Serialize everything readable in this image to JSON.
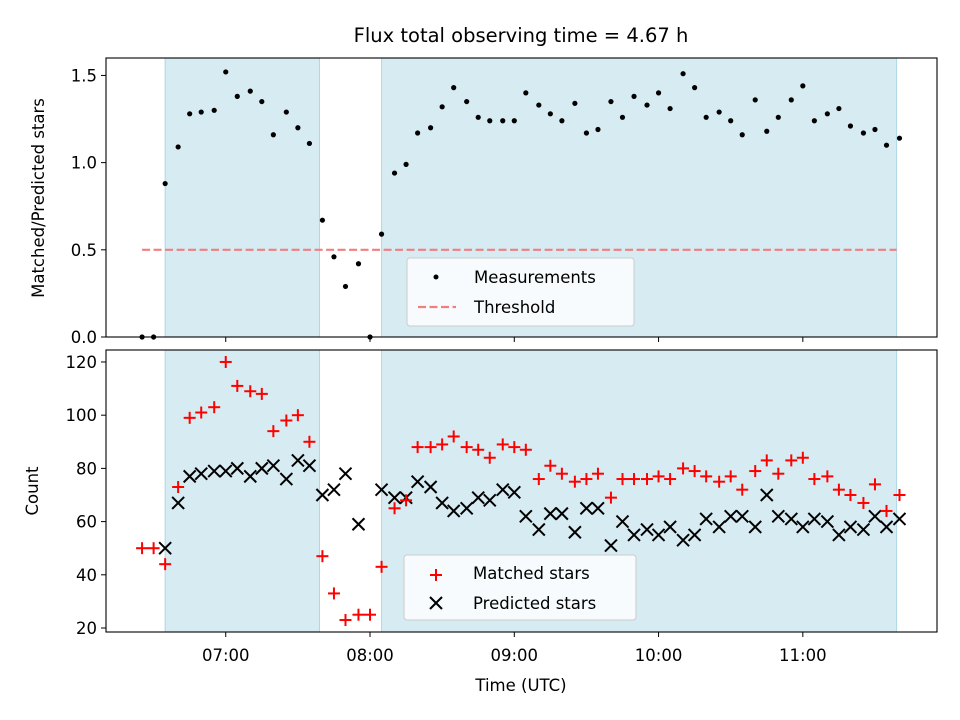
{
  "title": "Flux total observing time = 4.67 h",
  "colors": {
    "span": "#add8e6",
    "threshold": "#f08080",
    "matched": "#ff0000",
    "predicted": "#000000",
    "measure": "#000000"
  },
  "chart_data": [
    {
      "type": "scatter",
      "ylabel": "Matched/Predicted stars",
      "ylim": [
        0,
        1.6
      ],
      "xlim": [
        6.17,
        11.93
      ],
      "yticks": [
        {
          "v": 0,
          "label": "0.0"
        },
        {
          "v": 0.5,
          "label": "0.5"
        },
        {
          "v": 1.0,
          "label": "1.0"
        },
        {
          "v": 1.5,
          "label": "1.5"
        }
      ],
      "spans": [
        [
          6.58,
          7.65
        ],
        [
          8.08,
          11.65
        ]
      ],
      "threshold": {
        "y": 0.5,
        "x": [
          6.42,
          11.65
        ],
        "name": "Threshold"
      },
      "legend": {
        "position": "lower-center",
        "entries": [
          "Measurements",
          "Threshold"
        ]
      },
      "series": [
        {
          "name": "Measurements",
          "points": [
            [
              6.42,
              0.0
            ],
            [
              6.5,
              0.0
            ],
            [
              6.58,
              0.88
            ],
            [
              6.67,
              1.09
            ],
            [
              6.75,
              1.28
            ],
            [
              6.83,
              1.29
            ],
            [
              6.92,
              1.3
            ],
            [
              7.0,
              1.52
            ],
            [
              7.08,
              1.38
            ],
            [
              7.17,
              1.41
            ],
            [
              7.25,
              1.35
            ],
            [
              7.33,
              1.16
            ],
            [
              7.42,
              1.29
            ],
            [
              7.5,
              1.2
            ],
            [
              7.58,
              1.11
            ],
            [
              7.67,
              0.67
            ],
            [
              7.75,
              0.46
            ],
            [
              7.83,
              0.29
            ],
            [
              7.92,
              0.42
            ],
            [
              8.0,
              0.0
            ],
            [
              8.08,
              0.59
            ],
            [
              8.17,
              0.94
            ],
            [
              8.25,
              0.99
            ],
            [
              8.33,
              1.17
            ],
            [
              8.42,
              1.2
            ],
            [
              8.5,
              1.32
            ],
            [
              8.58,
              1.43
            ],
            [
              8.67,
              1.35
            ],
            [
              8.75,
              1.26
            ],
            [
              8.83,
              1.24
            ],
            [
              8.92,
              1.24
            ],
            [
              9.0,
              1.24
            ],
            [
              9.08,
              1.4
            ],
            [
              9.17,
              1.33
            ],
            [
              9.25,
              1.28
            ],
            [
              9.33,
              1.24
            ],
            [
              9.42,
              1.34
            ],
            [
              9.5,
              1.17
            ],
            [
              9.58,
              1.19
            ],
            [
              9.67,
              1.35
            ],
            [
              9.75,
              1.26
            ],
            [
              9.83,
              1.38
            ],
            [
              9.92,
              1.33
            ],
            [
              10.0,
              1.4
            ],
            [
              10.08,
              1.31
            ],
            [
              10.17,
              1.51
            ],
            [
              10.25,
              1.43
            ],
            [
              10.33,
              1.26
            ],
            [
              10.42,
              1.29
            ],
            [
              10.5,
              1.24
            ],
            [
              10.58,
              1.16
            ],
            [
              10.67,
              1.36
            ],
            [
              10.75,
              1.18
            ],
            [
              10.83,
              1.26
            ],
            [
              10.92,
              1.36
            ],
            [
              11.0,
              1.44
            ],
            [
              11.08,
              1.24
            ],
            [
              11.17,
              1.28
            ],
            [
              11.25,
              1.31
            ],
            [
              11.33,
              1.21
            ],
            [
              11.42,
              1.17
            ],
            [
              11.5,
              1.19
            ],
            [
              11.58,
              1.1
            ],
            [
              11.67,
              1.14
            ]
          ]
        }
      ]
    },
    {
      "type": "scatter",
      "xlabel": "Time (UTC)",
      "ylabel": "Count",
      "ylim": [
        18.5,
        124.5
      ],
      "xlim": [
        6.17,
        11.93
      ],
      "yticks": [
        {
          "v": 20,
          "label": "20"
        },
        {
          "v": 40,
          "label": "40"
        },
        {
          "v": 60,
          "label": "60"
        },
        {
          "v": 80,
          "label": "80"
        },
        {
          "v": 100,
          "label": "100"
        },
        {
          "v": 120,
          "label": "120"
        }
      ],
      "xticks": [
        {
          "v": 7,
          "label": "07:00"
        },
        {
          "v": 8,
          "label": "08:00"
        },
        {
          "v": 9,
          "label": "09:00"
        },
        {
          "v": 10,
          "label": "10:00"
        },
        {
          "v": 11,
          "label": "11:00"
        }
      ],
      "spans": [
        [
          6.58,
          7.65
        ],
        [
          8.08,
          11.65
        ]
      ],
      "legend": {
        "position": "lower-center",
        "entries": [
          "Matched stars",
          "Predicted stars"
        ]
      },
      "series": [
        {
          "name": "Matched stars",
          "marker": "plus",
          "points": [
            [
              6.42,
              50
            ],
            [
              6.5,
              50
            ],
            [
              6.58,
              44
            ],
            [
              6.67,
              73
            ],
            [
              6.75,
              99
            ],
            [
              6.83,
              101
            ],
            [
              6.92,
              103
            ],
            [
              7.0,
              120
            ],
            [
              7.08,
              111
            ],
            [
              7.17,
              109
            ],
            [
              7.25,
              108
            ],
            [
              7.33,
              94
            ],
            [
              7.42,
              98
            ],
            [
              7.5,
              100
            ],
            [
              7.58,
              90
            ],
            [
              7.67,
              47
            ],
            [
              7.75,
              33
            ],
            [
              7.83,
              23
            ],
            [
              7.92,
              25
            ],
            [
              8.0,
              25
            ],
            [
              8.08,
              43
            ],
            [
              8.17,
              65
            ],
            [
              8.25,
              68
            ],
            [
              8.33,
              88
            ],
            [
              8.42,
              88
            ],
            [
              8.5,
              89
            ],
            [
              8.58,
              92
            ],
            [
              8.67,
              88
            ],
            [
              8.75,
              87
            ],
            [
              8.83,
              84
            ],
            [
              8.92,
              89
            ],
            [
              9.0,
              88
            ],
            [
              9.08,
              87
            ],
            [
              9.17,
              76
            ],
            [
              9.25,
              81
            ],
            [
              9.33,
              78
            ],
            [
              9.42,
              75
            ],
            [
              9.5,
              76
            ],
            [
              9.58,
              78
            ],
            [
              9.67,
              69
            ],
            [
              9.75,
              76
            ],
            [
              9.83,
              76
            ],
            [
              9.92,
              76
            ],
            [
              10.0,
              77
            ],
            [
              10.08,
              76
            ],
            [
              10.17,
              80
            ],
            [
              10.25,
              79
            ],
            [
              10.33,
              77
            ],
            [
              10.42,
              75
            ],
            [
              10.5,
              77
            ],
            [
              10.58,
              72
            ],
            [
              10.67,
              79
            ],
            [
              10.75,
              83
            ],
            [
              10.83,
              78
            ],
            [
              10.92,
              83
            ],
            [
              11.0,
              84
            ],
            [
              11.08,
              76
            ],
            [
              11.17,
              77
            ],
            [
              11.25,
              72
            ],
            [
              11.33,
              70
            ],
            [
              11.42,
              67
            ],
            [
              11.5,
              74
            ],
            [
              11.58,
              64
            ],
            [
              11.67,
              70
            ]
          ]
        },
        {
          "name": "Predicted stars",
          "marker": "x",
          "points": [
            [
              6.58,
              50
            ],
            [
              6.67,
              67
            ],
            [
              6.75,
              77
            ],
            [
              6.83,
              78
            ],
            [
              6.92,
              79
            ],
            [
              7.0,
              79
            ],
            [
              7.08,
              80
            ],
            [
              7.17,
              77
            ],
            [
              7.25,
              80
            ],
            [
              7.33,
              81
            ],
            [
              7.42,
              76
            ],
            [
              7.5,
              83
            ],
            [
              7.58,
              81
            ],
            [
              7.67,
              70
            ],
            [
              7.75,
              72
            ],
            [
              7.83,
              78
            ],
            [
              7.92,
              59
            ],
            [
              8.08,
              72
            ],
            [
              8.17,
              69
            ],
            [
              8.25,
              69
            ],
            [
              8.33,
              75
            ],
            [
              8.42,
              73
            ],
            [
              8.5,
              67
            ],
            [
              8.58,
              64
            ],
            [
              8.67,
              65
            ],
            [
              8.75,
              69
            ],
            [
              8.83,
              68
            ],
            [
              8.92,
              72
            ],
            [
              9.0,
              71
            ],
            [
              9.08,
              62
            ],
            [
              9.17,
              57
            ],
            [
              9.25,
              63
            ],
            [
              9.33,
              63
            ],
            [
              9.42,
              56
            ],
            [
              9.5,
              65
            ],
            [
              9.58,
              65
            ],
            [
              9.67,
              51
            ],
            [
              9.75,
              60
            ],
            [
              9.83,
              55
            ],
            [
              9.92,
              57
            ],
            [
              10.0,
              55
            ],
            [
              10.08,
              58
            ],
            [
              10.17,
              53
            ],
            [
              10.25,
              55
            ],
            [
              10.33,
              61
            ],
            [
              10.42,
              58
            ],
            [
              10.5,
              62
            ],
            [
              10.58,
              62
            ],
            [
              10.67,
              58
            ],
            [
              10.75,
              70
            ],
            [
              10.83,
              62
            ],
            [
              10.92,
              61
            ],
            [
              11.0,
              58
            ],
            [
              11.08,
              61
            ],
            [
              11.17,
              60
            ],
            [
              11.25,
              55
            ],
            [
              11.33,
              58
            ],
            [
              11.42,
              57
            ],
            [
              11.5,
              62
            ],
            [
              11.58,
              58
            ],
            [
              11.67,
              61
            ]
          ]
        }
      ]
    }
  ]
}
